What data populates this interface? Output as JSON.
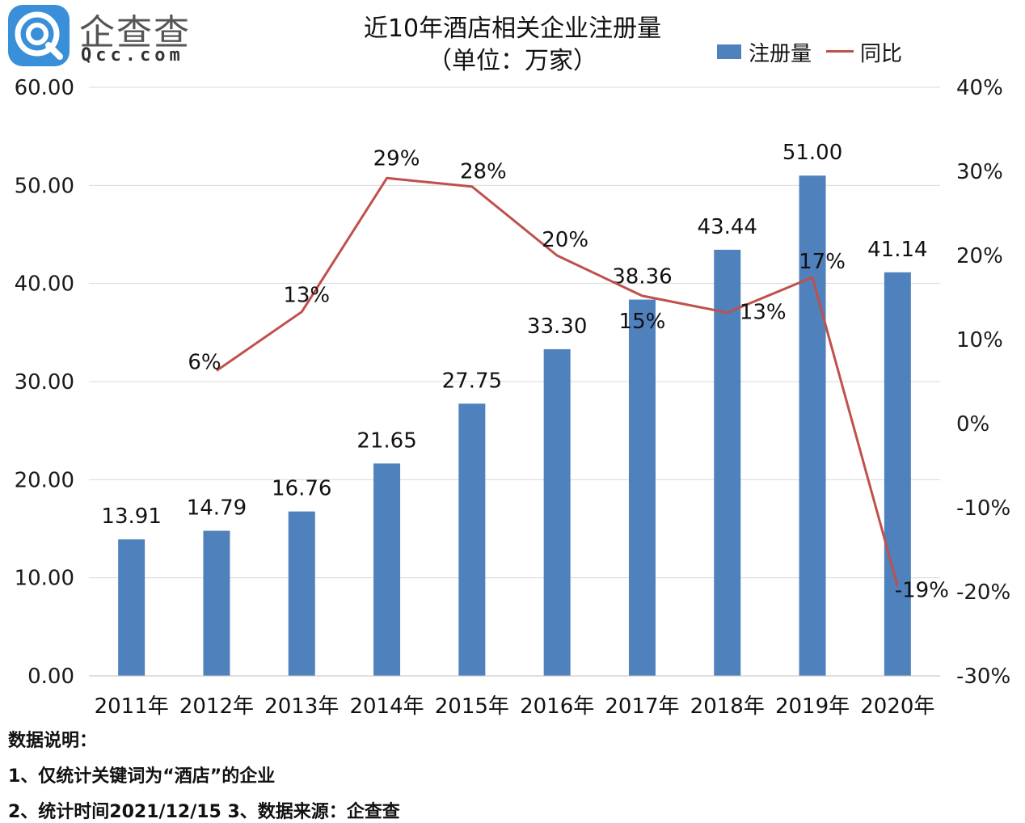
{
  "brand": {
    "name": "企查查",
    "url": "Qcc.com"
  },
  "colors": {
    "bar": "#4f81bd",
    "line": "#c0504d",
    "grid": "#d9d9d9",
    "logo": "#3a8fd9"
  },
  "notes": {
    "heading": "数据说明：",
    "line1": "1、仅统计关键词为“酒店”的企业",
    "line2": "2、统计时间2021/12/15   3、数据来源：企查查"
  },
  "chart_data": {
    "type": "bar",
    "title": "近10年酒店相关企业注册量",
    "subtitle": "（单位：万家）",
    "categories": [
      "2011年",
      "2012年",
      "2013年",
      "2014年",
      "2015年",
      "2016年",
      "2017年",
      "2018年",
      "2019年",
      "2020年"
    ],
    "series": [
      {
        "name": "注册量",
        "type": "bar",
        "axis": "left",
        "values": [
          13.91,
          14.79,
          16.76,
          21.65,
          27.75,
          33.3,
          38.36,
          43.44,
          51.0,
          41.14
        ],
        "labels": [
          "13.91",
          "14.79",
          "16.76",
          "21.65",
          "27.75",
          "33.30",
          "38.36",
          "43.44",
          "51.00",
          "41.14"
        ]
      },
      {
        "name": "同比",
        "type": "line",
        "axis": "right",
        "values": [
          null,
          6.3,
          13.3,
          29.2,
          28.2,
          20.0,
          15.2,
          13.2,
          17.4,
          -19.3
        ],
        "labels": [
          "",
          "6%",
          "13%",
          "29%",
          "28%",
          "20%",
          "15%",
          "13%",
          "17%",
          "-19%"
        ]
      }
    ],
    "y_left": {
      "ylim": [
        0,
        60
      ],
      "ticks": [
        "0.00",
        "10.00",
        "20.00",
        "30.00",
        "40.00",
        "50.00",
        "60.00"
      ]
    },
    "y_right": {
      "ylim": [
        -30,
        40
      ],
      "ticks": [
        "-30%",
        "-20%",
        "-10%",
        "0%",
        "10%",
        "20%",
        "30%",
        "40%"
      ]
    },
    "grid": true,
    "legend": {
      "position": "top-right",
      "entries": [
        "注册量",
        "同比"
      ]
    }
  }
}
